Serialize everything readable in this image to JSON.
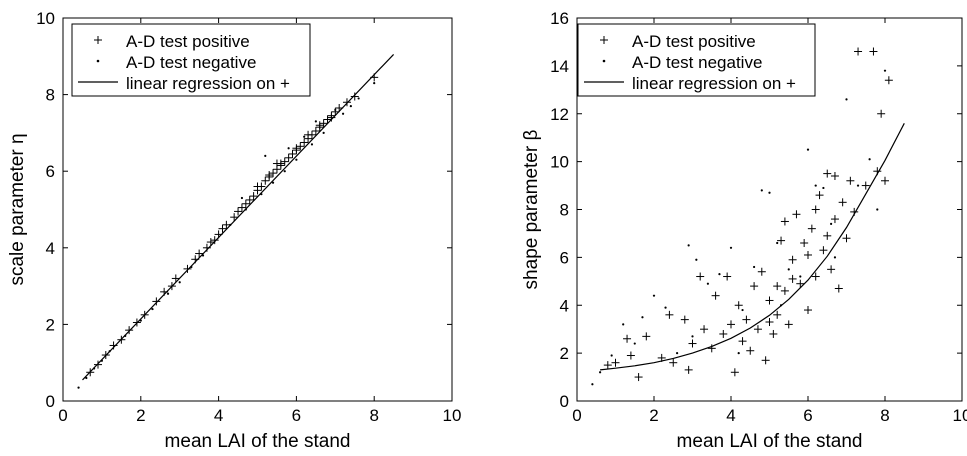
{
  "chart_data": [
    {
      "type": "scatter",
      "xlabel": "mean LAI of the stand",
      "ylabel": "scale parameter η",
      "xlim": [
        0,
        10
      ],
      "ylim": [
        0,
        10
      ],
      "xticks": [
        0,
        2,
        4,
        6,
        8,
        10
      ],
      "yticks": [
        0,
        2,
        4,
        6,
        8,
        10
      ],
      "legend": {
        "placement": "top-left",
        "entries": [
          "A-D test positive",
          "A-D test negative",
          "linear regression on +"
        ]
      },
      "series": [
        {
          "name": "A-D test positive",
          "marker": "plus",
          "points": [
            [
              0.7,
              0.75
            ],
            [
              0.9,
              0.95
            ],
            [
              1.1,
              1.2
            ],
            [
              1.3,
              1.45
            ],
            [
              1.5,
              1.6
            ],
            [
              1.7,
              1.85
            ],
            [
              1.9,
              2.05
            ],
            [
              2.1,
              2.25
            ],
            [
              2.4,
              2.6
            ],
            [
              2.6,
              2.85
            ],
            [
              2.8,
              3.0
            ],
            [
              2.9,
              3.2
            ],
            [
              3.2,
              3.45
            ],
            [
              3.4,
              3.7
            ],
            [
              3.5,
              3.85
            ],
            [
              3.7,
              4.0
            ],
            [
              3.8,
              4.15
            ],
            [
              4.0,
              4.35
            ],
            [
              4.1,
              4.5
            ],
            [
              4.2,
              4.6
            ],
            [
              4.4,
              4.8
            ],
            [
              4.5,
              4.95
            ],
            [
              4.6,
              5.05
            ],
            [
              4.8,
              5.25
            ],
            [
              4.9,
              5.35
            ],
            [
              5.0,
              5.5
            ],
            [
              5.1,
              5.6
            ],
            [
              5.2,
              5.75
            ],
            [
              5.3,
              5.85
            ],
            [
              5.4,
              5.95
            ],
            [
              5.5,
              6.05
            ],
            [
              5.6,
              6.15
            ],
            [
              5.7,
              6.25
            ],
            [
              5.8,
              6.35
            ],
            [
              5.9,
              6.45
            ],
            [
              6.0,
              6.55
            ],
            [
              6.1,
              6.65
            ],
            [
              6.2,
              6.75
            ],
            [
              6.3,
              6.85
            ],
            [
              6.4,
              6.95
            ],
            [
              6.5,
              7.05
            ],
            [
              6.6,
              7.15
            ],
            [
              6.7,
              7.25
            ],
            [
              6.8,
              7.35
            ],
            [
              6.9,
              7.45
            ],
            [
              7.0,
              7.55
            ],
            [
              7.1,
              7.65
            ],
            [
              7.3,
              7.8
            ],
            [
              7.5,
              7.95
            ],
            [
              8.0,
              8.45
            ],
            [
              5.0,
              5.6
            ],
            [
              5.3,
              5.9
            ],
            [
              5.6,
              6.2
            ],
            [
              6.0,
              6.6
            ],
            [
              6.3,
              6.95
            ],
            [
              6.6,
              7.2
            ],
            [
              5.5,
              6.2
            ],
            [
              4.7,
              5.15
            ],
            [
              3.9,
              4.2
            ],
            [
              6.9,
              7.4
            ]
          ]
        },
        {
          "name": "A-D test negative",
          "marker": "dot",
          "points": [
            [
              0.4,
              0.35
            ],
            [
              0.6,
              0.6
            ],
            [
              0.8,
              0.85
            ],
            [
              1.0,
              1.05
            ],
            [
              1.2,
              1.3
            ],
            [
              1.6,
              1.7
            ],
            [
              2.0,
              2.1
            ],
            [
              2.3,
              2.4
            ],
            [
              2.7,
              2.8
            ],
            [
              3.0,
              3.1
            ],
            [
              3.3,
              3.5
            ],
            [
              3.6,
              3.8
            ],
            [
              4.3,
              4.6
            ],
            [
              4.7,
              5.0
            ],
            [
              5.1,
              5.4
            ],
            [
              5.2,
              6.4
            ],
            [
              5.4,
              5.7
            ],
            [
              5.7,
              6.0
            ],
            [
              6.0,
              6.3
            ],
            [
              6.4,
              6.7
            ],
            [
              6.7,
              7.0
            ],
            [
              7.2,
              7.5
            ],
            [
              7.6,
              7.9
            ],
            [
              8.0,
              8.3
            ],
            [
              4.6,
              5.3
            ],
            [
              5.8,
              6.6
            ],
            [
              6.2,
              6.9
            ],
            [
              6.5,
              7.3
            ],
            [
              7.0,
              7.6
            ],
            [
              7.4,
              7.7
            ]
          ]
        }
      ],
      "regression": {
        "name": "linear regression on +",
        "points": [
          [
            0.5,
            0.55
          ],
          [
            8.5,
            9.05
          ]
        ]
      }
    },
    {
      "type": "scatter",
      "xlabel": "mean LAI of the stand",
      "ylabel": "shape parameter β",
      "xlim": [
        0,
        10
      ],
      "ylim": [
        0,
        16
      ],
      "xticks": [
        0,
        2,
        4,
        6,
        8,
        10
      ],
      "yticks": [
        0,
        2,
        4,
        6,
        8,
        10,
        12,
        14,
        16
      ],
      "legend": {
        "placement": "top-left",
        "entries": [
          "A-D test positive",
          "A-D test negative",
          "linear regression on +"
        ]
      },
      "series": [
        {
          "name": "A-D test positive",
          "marker": "plus",
          "points": [
            [
              0.8,
              1.5
            ],
            [
              1.0,
              1.6
            ],
            [
              1.3,
              2.6
            ],
            [
              1.4,
              1.9
            ],
            [
              1.6,
              1.0
            ],
            [
              1.8,
              2.7
            ],
            [
              2.2,
              1.8
            ],
            [
              2.4,
              3.6
            ],
            [
              2.5,
              1.6
            ],
            [
              2.8,
              3.4
            ],
            [
              2.9,
              1.3
            ],
            [
              3.0,
              2.4
            ],
            [
              3.2,
              5.2
            ],
            [
              3.5,
              2.2
            ],
            [
              3.6,
              4.4
            ],
            [
              3.8,
              2.8
            ],
            [
              3.9,
              5.2
            ],
            [
              4.1,
              1.2
            ],
            [
              4.2,
              4.0
            ],
            [
              4.3,
              2.5
            ],
            [
              4.4,
              3.4
            ],
            [
              4.5,
              2.1
            ],
            [
              4.6,
              4.8
            ],
            [
              4.7,
              3.0
            ],
            [
              4.8,
              5.4
            ],
            [
              4.9,
              1.7
            ],
            [
              5.0,
              4.2
            ],
            [
              5.1,
              2.8
            ],
            [
              5.2,
              3.6
            ],
            [
              5.3,
              6.7
            ],
            [
              5.4,
              4.6
            ],
            [
              5.5,
              3.2
            ],
            [
              5.6,
              5.9
            ],
            [
              5.7,
              7.8
            ],
            [
              5.8,
              4.9
            ],
            [
              5.9,
              6.6
            ],
            [
              6.0,
              3.8
            ],
            [
              6.1,
              7.2
            ],
            [
              6.2,
              5.2
            ],
            [
              6.3,
              8.6
            ],
            [
              6.4,
              6.3
            ],
            [
              6.5,
              9.5
            ],
            [
              6.6,
              5.5
            ],
            [
              6.7,
              7.6
            ],
            [
              6.8,
              4.7
            ],
            [
              6.9,
              8.3
            ],
            [
              7.0,
              6.8
            ],
            [
              7.1,
              9.2
            ],
            [
              7.2,
              7.9
            ],
            [
              7.3,
              14.6
            ],
            [
              7.5,
              9.0
            ],
            [
              7.7,
              14.6
            ],
            [
              7.8,
              9.6
            ],
            [
              7.9,
              12.0
            ],
            [
              8.0,
              9.2
            ],
            [
              8.1,
              13.4
            ],
            [
              5.2,
              4.8
            ],
            [
              5.6,
              5.1
            ],
            [
              6.0,
              6.1
            ],
            [
              5.4,
              7.5
            ],
            [
              6.2,
              8.0
            ],
            [
              6.5,
              6.9
            ],
            [
              4.0,
              3.2
            ],
            [
              5.0,
              3.3
            ],
            [
              6.7,
              9.4
            ],
            [
              3.3,
              3.0
            ]
          ]
        },
        {
          "name": "A-D test negative",
          "marker": "dot",
          "points": [
            [
              0.4,
              0.7
            ],
            [
              0.6,
              1.2
            ],
            [
              0.9,
              1.9
            ],
            [
              1.2,
              3.2
            ],
            [
              1.5,
              2.4
            ],
            [
              1.7,
              3.5
            ],
            [
              2.0,
              4.4
            ],
            [
              2.3,
              3.9
            ],
            [
              2.6,
              2.0
            ],
            [
              2.9,
              6.5
            ],
            [
              3.1,
              5.9
            ],
            [
              3.4,
              4.9
            ],
            [
              3.7,
              5.3
            ],
            [
              4.0,
              6.4
            ],
            [
              4.3,
              3.8
            ],
            [
              4.6,
              5.6
            ],
            [
              4.8,
              8.8
            ],
            [
              5.0,
              8.7
            ],
            [
              5.2,
              6.6
            ],
            [
              5.5,
              5.5
            ],
            [
              5.8,
              5.2
            ],
            [
              6.0,
              10.5
            ],
            [
              6.2,
              9.0
            ],
            [
              6.4,
              8.9
            ],
            [
              6.7,
              6.0
            ],
            [
              7.0,
              12.6
            ],
            [
              7.3,
              9.0
            ],
            [
              7.6,
              10.1
            ],
            [
              7.8,
              8.0
            ],
            [
              8.0,
              13.8
            ],
            [
              4.2,
              2.0
            ],
            [
              5.3,
              4.0
            ],
            [
              6.6,
              7.4
            ],
            [
              3.0,
              2.7
            ]
          ]
        }
      ],
      "regression": {
        "name": "linear regression on +",
        "points": [
          [
            0.6,
            1.3
          ],
          [
            1.0,
            1.37
          ],
          [
            1.5,
            1.47
          ],
          [
            2.0,
            1.6
          ],
          [
            2.5,
            1.78
          ],
          [
            3.0,
            2.0
          ],
          [
            3.5,
            2.28
          ],
          [
            4.0,
            2.62
          ],
          [
            4.5,
            3.05
          ],
          [
            5.0,
            3.58
          ],
          [
            5.5,
            4.25
          ],
          [
            6.0,
            5.05
          ],
          [
            6.5,
            6.05
          ],
          [
            7.0,
            7.25
          ],
          [
            7.5,
            8.65
          ],
          [
            8.0,
            10.05
          ],
          [
            8.5,
            11.6
          ]
        ]
      }
    }
  ]
}
